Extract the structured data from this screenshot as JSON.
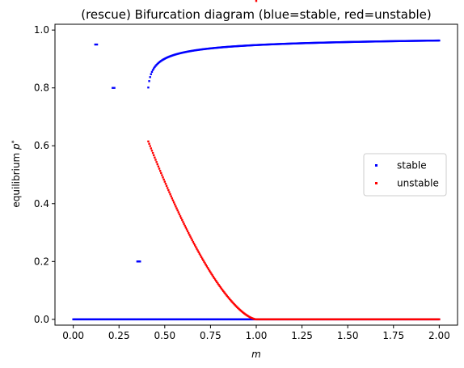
{
  "chart_data": {
    "type": "scatter",
    "title": "(rescue) Bifurcation diagram (blue=stable, red=unstable)",
    "xlabel": "m",
    "ylabel_main": "equilibrium ",
    "ylabel_sym": "p",
    "ylabel_sup": "*",
    "xlim": [
      -0.1,
      2.1
    ],
    "ylim": [
      -0.02,
      1.02
    ],
    "x_ticks": [
      0.0,
      0.25,
      0.5,
      0.75,
      1.0,
      1.25,
      1.5,
      1.75,
      2.0
    ],
    "x_tick_labels": [
      "0.00",
      "0.25",
      "0.50",
      "0.75",
      "1.00",
      "1.25",
      "1.50",
      "1.75",
      "2.00"
    ],
    "y_ticks": [
      0.0,
      0.2,
      0.4,
      0.6,
      0.8,
      1.0
    ],
    "y_tick_labels": [
      "0.0",
      "0.2",
      "0.4",
      "0.6",
      "0.8",
      "1.0"
    ],
    "grid": false,
    "legend_position": "center-right",
    "series": [
      {
        "name": "stable",
        "color": "#0000ff",
        "segments": [
          {
            "kind": "line",
            "x_start": 0.0,
            "x_end": 2.0,
            "y": 0.0,
            "step": 0.005
          },
          {
            "kind": "curve",
            "x_start": 0.41,
            "x_end": 2.0,
            "step": 0.005,
            "formula": "(1+sqrt(1-1/(4m^2)))/2 shifted"
          },
          {
            "kind": "points",
            "points": [
              [
                0.12,
                0.95
              ],
              [
                0.13,
                0.95
              ],
              [
                0.215,
                0.8
              ],
              [
                0.225,
                0.8
              ],
              [
                0.35,
                0.2
              ],
              [
                0.355,
                0.2
              ],
              [
                0.36,
                0.2
              ],
              [
                0.365,
                0.2
              ]
            ]
          }
        ]
      },
      {
        "name": "unstable",
        "color": "#ff0000",
        "segments": [
          {
            "kind": "curve",
            "x_start": 0.41,
            "x_end": 1.0,
            "step": 0.005
          },
          {
            "kind": "line",
            "x_start": 1.0,
            "x_end": 2.0,
            "y": 0.0,
            "step": 0.005
          }
        ]
      }
    ]
  }
}
